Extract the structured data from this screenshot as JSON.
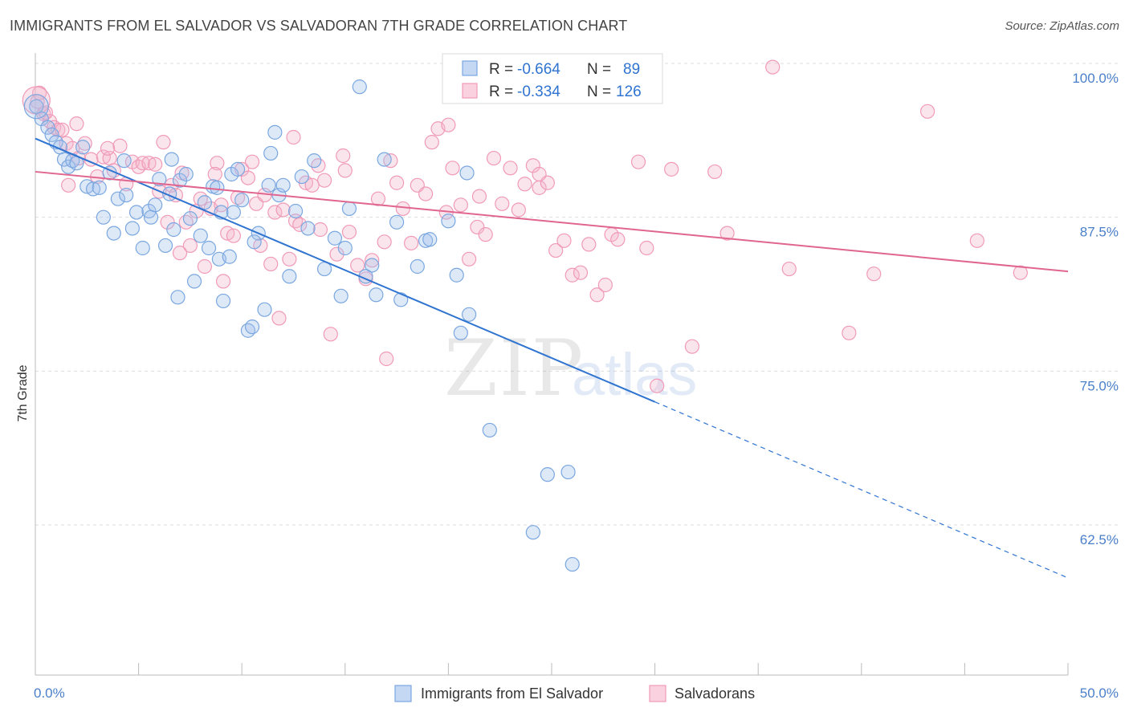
{
  "title": "IMMIGRANTS FROM EL SALVADOR VS SALVADORAN 7TH GRADE CORRELATION CHART",
  "source": "Source: ZipAtlas.com",
  "watermark": {
    "zip": "ZIP",
    "atlas": "atlas"
  },
  "legend": {
    "r_label": "R =",
    "n_label": "N =",
    "rows": [
      {
        "r": "-0.664",
        "n": "89",
        "color": "#7aa7e0"
      },
      {
        "r": "-0.334",
        "n": "126",
        "color": "#f09ab8"
      }
    ]
  },
  "bottom_legend": [
    "Immigrants from El Salvador",
    "Salvadorans"
  ],
  "chart_data": {
    "type": "scatter",
    "ylabel": "7th Grade",
    "xlim": [
      0,
      50
    ],
    "ylim": [
      53,
      101
    ],
    "x_tick_labels": [
      "0.0%",
      "50.0%"
    ],
    "y_ticks": [
      {
        "value": 100,
        "label": "100.0%"
      },
      {
        "value": 87.5,
        "label": "87.5%"
      },
      {
        "value": 75,
        "label": "75.0%"
      },
      {
        "value": 62.5,
        "label": "62.5%"
      }
    ],
    "grid": "horizontal dashed",
    "series": [
      {
        "name": "Immigrants from El Salvador",
        "color": "#7aa7e0",
        "line_color": "#2f74d0",
        "trend": {
          "x0": 0,
          "y0": 93.9,
          "x1": 30,
          "y1": 72.5,
          "x_dash_end": 50,
          "y_dash_end": 58.2
        },
        "points": [
          [
            0.05,
            96.5
          ],
          [
            0.3,
            95.5
          ],
          [
            0.6,
            94.8
          ],
          [
            0.8,
            94.2
          ],
          [
            1.0,
            93.6
          ],
          [
            1.2,
            93.2
          ],
          [
            1.4,
            92.2
          ],
          [
            1.6,
            91.6
          ],
          [
            1.8,
            92.1
          ],
          [
            2.0,
            91.9
          ],
          [
            2.3,
            93.2
          ],
          [
            2.5,
            90.0
          ],
          [
            2.8,
            89.8
          ],
          [
            3.1,
            89.9
          ],
          [
            3.3,
            87.5
          ],
          [
            3.6,
            91.1
          ],
          [
            4.0,
            89.0
          ],
          [
            4.3,
            92.1
          ],
          [
            4.4,
            89.3
          ],
          [
            4.7,
            86.6
          ],
          [
            4.9,
            87.9
          ],
          [
            5.2,
            85.0
          ],
          [
            5.5,
            88.0
          ],
          [
            5.6,
            87.5
          ],
          [
            6.0,
            90.6
          ],
          [
            6.3,
            85.2
          ],
          [
            6.5,
            89.4
          ],
          [
            6.6,
            92.2
          ],
          [
            6.7,
            86.5
          ],
          [
            6.9,
            81.0
          ],
          [
            7.0,
            90.5
          ],
          [
            7.3,
            91.0
          ],
          [
            7.5,
            87.4
          ],
          [
            7.7,
            82.3
          ],
          [
            8.0,
            86.0
          ],
          [
            8.2,
            88.7
          ],
          [
            8.4,
            85.0
          ],
          [
            8.6,
            90.0
          ],
          [
            8.8,
            89.9
          ],
          [
            8.9,
            84.1
          ],
          [
            9.0,
            87.9
          ],
          [
            9.1,
            80.7
          ],
          [
            9.4,
            84.3
          ],
          [
            9.5,
            91.0
          ],
          [
            9.6,
            87.9
          ],
          [
            9.8,
            91.4
          ],
          [
            10.0,
            88.9
          ],
          [
            10.3,
            78.3
          ],
          [
            10.5,
            78.6
          ],
          [
            10.8,
            86.2
          ],
          [
            11.1,
            80.0
          ],
          [
            11.3,
            90.1
          ],
          [
            11.4,
            92.7
          ],
          [
            11.6,
            94.4
          ],
          [
            11.8,
            89.3
          ],
          [
            12.0,
            90.1
          ],
          [
            12.3,
            82.7
          ],
          [
            12.6,
            88.0
          ],
          [
            12.9,
            90.8
          ],
          [
            13.2,
            86.6
          ],
          [
            13.5,
            92.1
          ],
          [
            14.0,
            83.3
          ],
          [
            14.5,
            85.8
          ],
          [
            14.8,
            81.1
          ],
          [
            15.0,
            85.0
          ],
          [
            15.2,
            88.2
          ],
          [
            15.7,
            98.1
          ],
          [
            16.0,
            82.7
          ],
          [
            16.3,
            83.6
          ],
          [
            16.5,
            81.2
          ],
          [
            16.9,
            92.2
          ],
          [
            17.5,
            87.1
          ],
          [
            17.7,
            80.8
          ],
          [
            18.5,
            83.5
          ],
          [
            18.9,
            85.6
          ],
          [
            19.1,
            85.7
          ],
          [
            20.0,
            87.2
          ],
          [
            20.4,
            82.8
          ],
          [
            20.6,
            78.1
          ],
          [
            20.9,
            91.1
          ],
          [
            21.0,
            79.6
          ],
          [
            22.0,
            70.2
          ],
          [
            24.1,
            61.9
          ],
          [
            24.8,
            66.6
          ],
          [
            25.8,
            66.8
          ],
          [
            26.0,
            59.3
          ],
          [
            10.6,
            85.5
          ],
          [
            5.8,
            88.5
          ],
          [
            3.8,
            86.2
          ]
        ]
      },
      {
        "name": "Salvadorans",
        "color": "#f09ab8",
        "line_color": "#e06690",
        "trend": {
          "x0": 0,
          "y0": 91.2,
          "x1": 50,
          "y1": 83.1
        },
        "points": [
          [
            0.1,
            96.9
          ],
          [
            0.4,
            95.9
          ],
          [
            0.7,
            95.3
          ],
          [
            0.9,
            94.8
          ],
          [
            1.1,
            94.6
          ],
          [
            1.3,
            94.6
          ],
          [
            1.5,
            93.5
          ],
          [
            1.8,
            93.1
          ],
          [
            2.1,
            92.3
          ],
          [
            2.4,
            93.5
          ],
          [
            2.7,
            92.2
          ],
          [
            3.0,
            90.8
          ],
          [
            3.3,
            92.4
          ],
          [
            3.6,
            92.3
          ],
          [
            3.8,
            91.3
          ],
          [
            4.1,
            93.3
          ],
          [
            4.4,
            90.2
          ],
          [
            4.7,
            92.0
          ],
          [
            5.0,
            91.6
          ],
          [
            5.2,
            91.9
          ],
          [
            5.5,
            91.9
          ],
          [
            5.8,
            91.8
          ],
          [
            6.0,
            89.6
          ],
          [
            6.2,
            93.6
          ],
          [
            6.4,
            87.1
          ],
          [
            6.6,
            90.1
          ],
          [
            6.8,
            89.3
          ],
          [
            7.1,
            91.1
          ],
          [
            7.3,
            87.1
          ],
          [
            7.5,
            85.2
          ],
          [
            7.8,
            88.0
          ],
          [
            8.0,
            89.0
          ],
          [
            8.2,
            83.5
          ],
          [
            8.5,
            88.2
          ],
          [
            8.8,
            91.9
          ],
          [
            9.0,
            88.5
          ],
          [
            9.1,
            82.3
          ],
          [
            9.3,
            86.2
          ],
          [
            9.6,
            86.0
          ],
          [
            9.8,
            89.1
          ],
          [
            10.0,
            91.4
          ],
          [
            10.3,
            90.7
          ],
          [
            10.5,
            92.0
          ],
          [
            10.7,
            88.6
          ],
          [
            10.9,
            85.2
          ],
          [
            11.1,
            89.3
          ],
          [
            11.4,
            83.7
          ],
          [
            11.6,
            87.9
          ],
          [
            11.8,
            79.3
          ],
          [
            12.0,
            88.1
          ],
          [
            12.3,
            84.1
          ],
          [
            12.6,
            87.2
          ],
          [
            12.8,
            86.9
          ],
          [
            13.1,
            90.3
          ],
          [
            13.4,
            90.1
          ],
          [
            13.7,
            91.7
          ],
          [
            14.0,
            90.5
          ],
          [
            14.3,
            78.0
          ],
          [
            14.6,
            84.5
          ],
          [
            14.9,
            92.5
          ],
          [
            15.2,
            86.3
          ],
          [
            15.6,
            83.6
          ],
          [
            16.0,
            82.5
          ],
          [
            16.3,
            84.0
          ],
          [
            16.6,
            89.0
          ],
          [
            16.9,
            85.5
          ],
          [
            17.2,
            92.1
          ],
          [
            17.5,
            90.3
          ],
          [
            17.8,
            88.2
          ],
          [
            18.2,
            85.4
          ],
          [
            18.5,
            90.1
          ],
          [
            18.9,
            89.4
          ],
          [
            19.2,
            93.6
          ],
          [
            19.5,
            94.7
          ],
          [
            19.9,
            87.9
          ],
          [
            20.2,
            91.5
          ],
          [
            20.6,
            88.5
          ],
          [
            21.0,
            84.1
          ],
          [
            21.4,
            86.7
          ],
          [
            21.8,
            86.1
          ],
          [
            22.2,
            92.3
          ],
          [
            22.6,
            88.6
          ],
          [
            23.0,
            91.5
          ],
          [
            23.4,
            88.1
          ],
          [
            23.7,
            90.2
          ],
          [
            24.1,
            91.7
          ],
          [
            24.4,
            89.9
          ],
          [
            24.8,
            90.3
          ],
          [
            25.2,
            84.8
          ],
          [
            25.6,
            85.6
          ],
          [
            26.0,
            82.8
          ],
          [
            26.4,
            83.0
          ],
          [
            26.8,
            85.3
          ],
          [
            27.2,
            81.2
          ],
          [
            27.6,
            82.0
          ],
          [
            27.9,
            86.1
          ],
          [
            28.2,
            85.7
          ],
          [
            29.2,
            92.0
          ],
          [
            29.6,
            85.0
          ],
          [
            30.1,
            73.8
          ],
          [
            30.8,
            91.4
          ],
          [
            31.8,
            77.0
          ],
          [
            32.9,
            91.2
          ],
          [
            33.5,
            86.2
          ],
          [
            35.7,
            99.7
          ],
          [
            36.5,
            83.3
          ],
          [
            39.4,
            78.1
          ],
          [
            40.6,
            82.9
          ],
          [
            43.2,
            96.1
          ],
          [
            45.6,
            85.6
          ],
          [
            47.7,
            83.0
          ],
          [
            24.4,
            91.0
          ],
          [
            2.0,
            95.1
          ],
          [
            0.2,
            97.6
          ],
          [
            0.5,
            96.0
          ],
          [
            1.6,
            90.1
          ],
          [
            3.5,
            93.1
          ],
          [
            7.0,
            84.6
          ],
          [
            12.5,
            94.0
          ],
          [
            17.0,
            76.0
          ],
          [
            26.0,
            100.0
          ],
          [
            20.0,
            95.0
          ],
          [
            13.8,
            86.5
          ],
          [
            8.7,
            91.0
          ],
          [
            15.0,
            91.3
          ],
          [
            21.5,
            89.2
          ]
        ]
      }
    ]
  }
}
